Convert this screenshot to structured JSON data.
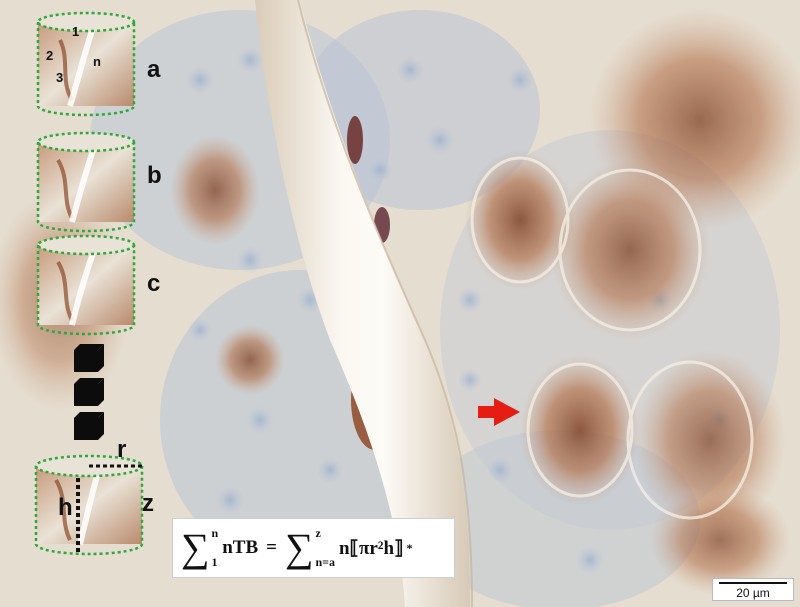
{
  "labels": {
    "slice_1": "1",
    "slice_2": "2",
    "slice_3": "3",
    "slice_n": "n",
    "a": "a",
    "b": "b",
    "c": "c",
    "r": "r",
    "h": "h",
    "z": "z"
  },
  "formula": {
    "lhs_upper": "n",
    "lhs_lower": "1",
    "lhs_term": "nTB",
    "equals": "=",
    "rhs_upper": "z",
    "rhs_lower": "n=a",
    "rhs_term": "n⟦πr²h⟧",
    "asterisk": "*"
  },
  "scale_bar": {
    "label": "20 µm"
  },
  "colors": {
    "tissue_blue": "#a9b9d0",
    "stain_brown": "#a5623a",
    "background": "#e8e2d8",
    "dotted_outline": "#2ea83a",
    "arrow": "#e61d12"
  }
}
